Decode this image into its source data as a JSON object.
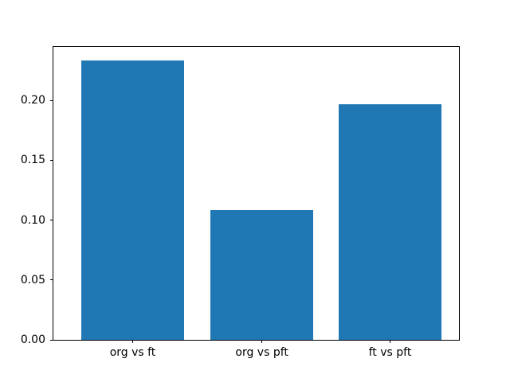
{
  "chart_data": {
    "type": "bar",
    "categories": [
      "org vs ft",
      "org vs pft",
      "ft vs pft"
    ],
    "values": [
      0.2337,
      0.1083,
      0.1971
    ],
    "title": "",
    "xlabel": "",
    "ylabel": "",
    "ylim": [
      0,
      0.2447
    ],
    "yticks": [
      0.0,
      0.05,
      0.1,
      0.15,
      0.2
    ],
    "ytick_labels": [
      "0.00",
      "0.05",
      "0.10",
      "0.15",
      "0.20"
    ],
    "bar_color": "#1f77b4",
    "axis_color": "#000000",
    "background_color": "#ffffff",
    "grid": false,
    "legend": null
  }
}
